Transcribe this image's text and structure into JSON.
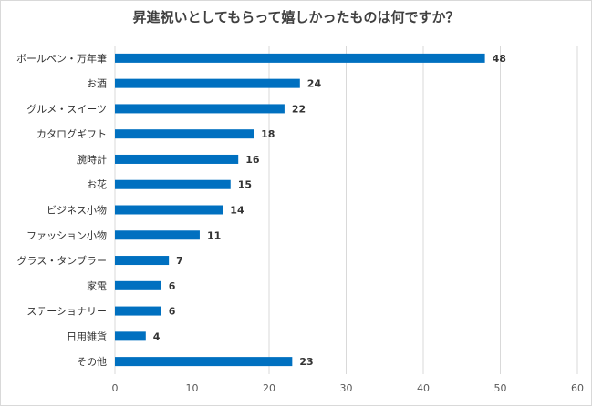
{
  "chart_data": {
    "type": "bar",
    "orientation": "horizontal",
    "title": "昇進祝いとしてもらって嬉しかったものは何ですか？",
    "categories": [
      "ボールペン・万年筆",
      "お酒",
      "グルメ・スイーツ",
      "カタログギフト",
      "腕時計",
      "お花",
      "ビジネス小物",
      "ファッション小物",
      "グラス・タンブラー",
      "家電",
      "ステーショナリー",
      "日用雑貨",
      "その他"
    ],
    "values": [
      48,
      24,
      22,
      18,
      16,
      15,
      14,
      11,
      7,
      6,
      6,
      4,
      23
    ],
    "xlim": [
      0,
      60
    ],
    "xticks": [
      0,
      10,
      20,
      30,
      40,
      50,
      60
    ],
    "grid": true,
    "bar_color": "#0070C0",
    "xlabel": "",
    "ylabel": ""
  }
}
